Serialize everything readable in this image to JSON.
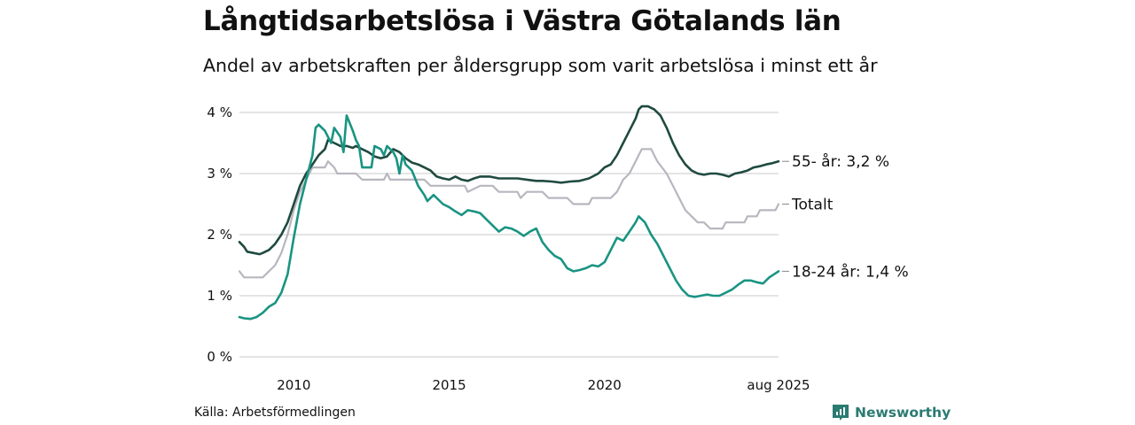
{
  "header": {
    "title": "Långtidsarbetslösa i Västra Götalands län",
    "subtitle": "Andel av arbetskraften per åldersgrupp som varit arbetslösa i minst ett år"
  },
  "footer": {
    "source": "Källa: Arbetsförmedlingen",
    "brand": "Newsworthy"
  },
  "colors": {
    "s55": "#1f4a40",
    "total": "#b8b6bf",
    "s1824": "#1a9482",
    "grid": "#dcdcdc",
    "brand": "#2a7b72"
  },
  "chart_data": {
    "type": "line",
    "ylim": [
      0,
      4
    ],
    "yticks": [
      0,
      1,
      2,
      3,
      4
    ],
    "ytick_labels": [
      "0 %",
      "1 %",
      "2 %",
      "3 %",
      "4 %"
    ],
    "xlim": [
      2008.25,
      2025.6
    ],
    "xticks": [
      2010,
      2015,
      2020,
      2025.6
    ],
    "xtick_labels": [
      "2010",
      "2015",
      "2020",
      "aug 2025"
    ],
    "grid": true,
    "series": [
      {
        "name": "Totalt",
        "end_label": "Totalt",
        "color_key": "total",
        "points": [
          [
            2008.25,
            1.4
          ],
          [
            2008.4,
            1.3
          ],
          [
            2009.0,
            1.3
          ],
          [
            2009.2,
            1.4
          ],
          [
            2009.4,
            1.5
          ],
          [
            2009.6,
            1.7
          ],
          [
            2009.8,
            2.0
          ],
          [
            2010.0,
            2.4
          ],
          [
            2010.2,
            2.7
          ],
          [
            2010.4,
            2.9
          ],
          [
            2010.6,
            3.1
          ],
          [
            2010.8,
            3.1
          ],
          [
            2011.0,
            3.1
          ],
          [
            2011.1,
            3.2
          ],
          [
            2011.3,
            3.1
          ],
          [
            2011.4,
            3.0
          ],
          [
            2012.0,
            3.0
          ],
          [
            2012.2,
            2.9
          ],
          [
            2012.9,
            2.9
          ],
          [
            2013.0,
            3.0
          ],
          [
            2013.1,
            2.9
          ],
          [
            2014.2,
            2.9
          ],
          [
            2014.4,
            2.8
          ],
          [
            2015.5,
            2.8
          ],
          [
            2015.6,
            2.7
          ],
          [
            2016.0,
            2.8
          ],
          [
            2016.4,
            2.8
          ],
          [
            2016.6,
            2.7
          ],
          [
            2017.2,
            2.7
          ],
          [
            2017.3,
            2.6
          ],
          [
            2017.5,
            2.7
          ],
          [
            2018.0,
            2.7
          ],
          [
            2018.2,
            2.6
          ],
          [
            2018.8,
            2.6
          ],
          [
            2019.0,
            2.5
          ],
          [
            2019.5,
            2.5
          ],
          [
            2019.6,
            2.6
          ],
          [
            2020.2,
            2.6
          ],
          [
            2020.4,
            2.7
          ],
          [
            2020.6,
            2.9
          ],
          [
            2020.8,
            3.0
          ],
          [
            2021.0,
            3.2
          ],
          [
            2021.2,
            3.4
          ],
          [
            2021.5,
            3.4
          ],
          [
            2021.7,
            3.2
          ],
          [
            2022.0,
            3.0
          ],
          [
            2022.2,
            2.8
          ],
          [
            2022.4,
            2.6
          ],
          [
            2022.6,
            2.4
          ],
          [
            2022.8,
            2.3
          ],
          [
            2023.0,
            2.2
          ],
          [
            2023.2,
            2.2
          ],
          [
            2023.4,
            2.1
          ],
          [
            2023.8,
            2.1
          ],
          [
            2023.9,
            2.2
          ],
          [
            2024.5,
            2.2
          ],
          [
            2024.6,
            2.3
          ],
          [
            2024.9,
            2.3
          ],
          [
            2025.0,
            2.4
          ],
          [
            2025.5,
            2.4
          ],
          [
            2025.6,
            2.5
          ]
        ]
      },
      {
        "name": "55- år",
        "end_label": "55- år: 3,2 %",
        "color_key": "s55",
        "points": [
          [
            2008.25,
            1.88
          ],
          [
            2008.4,
            1.8
          ],
          [
            2008.5,
            1.72
          ],
          [
            2008.7,
            1.7
          ],
          [
            2008.9,
            1.68
          ],
          [
            2009.0,
            1.7
          ],
          [
            2009.2,
            1.75
          ],
          [
            2009.4,
            1.85
          ],
          [
            2009.6,
            2.0
          ],
          [
            2009.8,
            2.2
          ],
          [
            2010.0,
            2.5
          ],
          [
            2010.2,
            2.8
          ],
          [
            2010.4,
            3.0
          ],
          [
            2010.6,
            3.15
          ],
          [
            2010.8,
            3.3
          ],
          [
            2011.0,
            3.4
          ],
          [
            2011.1,
            3.55
          ],
          [
            2011.3,
            3.5
          ],
          [
            2011.5,
            3.45
          ],
          [
            2011.7,
            3.45
          ],
          [
            2011.9,
            3.42
          ],
          [
            2012.0,
            3.45
          ],
          [
            2012.2,
            3.4
          ],
          [
            2012.4,
            3.35
          ],
          [
            2012.6,
            3.28
          ],
          [
            2012.8,
            3.25
          ],
          [
            2013.0,
            3.28
          ],
          [
            2013.2,
            3.4
          ],
          [
            2013.4,
            3.35
          ],
          [
            2013.6,
            3.25
          ],
          [
            2013.8,
            3.18
          ],
          [
            2014.0,
            3.15
          ],
          [
            2014.2,
            3.1
          ],
          [
            2014.4,
            3.05
          ],
          [
            2014.6,
            2.95
          ],
          [
            2014.8,
            2.92
          ],
          [
            2015.0,
            2.9
          ],
          [
            2015.2,
            2.95
          ],
          [
            2015.4,
            2.9
          ],
          [
            2015.6,
            2.88
          ],
          [
            2015.8,
            2.92
          ],
          [
            2016.0,
            2.95
          ],
          [
            2016.3,
            2.95
          ],
          [
            2016.6,
            2.92
          ],
          [
            2016.9,
            2.92
          ],
          [
            2017.2,
            2.92
          ],
          [
            2017.5,
            2.9
          ],
          [
            2017.8,
            2.88
          ],
          [
            2018.0,
            2.88
          ],
          [
            2018.3,
            2.87
          ],
          [
            2018.6,
            2.85
          ],
          [
            2018.9,
            2.87
          ],
          [
            2019.2,
            2.88
          ],
          [
            2019.5,
            2.92
          ],
          [
            2019.8,
            3.0
          ],
          [
            2020.0,
            3.1
          ],
          [
            2020.2,
            3.15
          ],
          [
            2020.4,
            3.3
          ],
          [
            2020.6,
            3.5
          ],
          [
            2020.8,
            3.7
          ],
          [
            2021.0,
            3.9
          ],
          [
            2021.1,
            4.05
          ],
          [
            2021.2,
            4.1
          ],
          [
            2021.4,
            4.1
          ],
          [
            2021.6,
            4.05
          ],
          [
            2021.8,
            3.95
          ],
          [
            2022.0,
            3.75
          ],
          [
            2022.2,
            3.5
          ],
          [
            2022.4,
            3.3
          ],
          [
            2022.6,
            3.15
          ],
          [
            2022.8,
            3.05
          ],
          [
            2023.0,
            3.0
          ],
          [
            2023.2,
            2.98
          ],
          [
            2023.4,
            3.0
          ],
          [
            2023.6,
            3.0
          ],
          [
            2023.8,
            2.98
          ],
          [
            2024.0,
            2.95
          ],
          [
            2024.2,
            3.0
          ],
          [
            2024.4,
            3.02
          ],
          [
            2024.6,
            3.05
          ],
          [
            2024.8,
            3.1
          ],
          [
            2025.0,
            3.12
          ],
          [
            2025.2,
            3.15
          ],
          [
            2025.4,
            3.17
          ],
          [
            2025.6,
            3.2
          ]
        ]
      },
      {
        "name": "18-24 år",
        "end_label": "18-24 år: 1,4 %",
        "color_key": "s1824",
        "points": [
          [
            2008.25,
            0.65
          ],
          [
            2008.4,
            0.63
          ],
          [
            2008.6,
            0.62
          ],
          [
            2008.8,
            0.65
          ],
          [
            2009.0,
            0.72
          ],
          [
            2009.2,
            0.82
          ],
          [
            2009.4,
            0.88
          ],
          [
            2009.6,
            1.05
          ],
          [
            2009.8,
            1.35
          ],
          [
            2010.0,
            1.95
          ],
          [
            2010.2,
            2.5
          ],
          [
            2010.4,
            2.9
          ],
          [
            2010.6,
            3.3
          ],
          [
            2010.7,
            3.75
          ],
          [
            2010.8,
            3.8
          ],
          [
            2011.0,
            3.7
          ],
          [
            2011.2,
            3.5
          ],
          [
            2011.3,
            3.75
          ],
          [
            2011.5,
            3.6
          ],
          [
            2011.6,
            3.35
          ],
          [
            2011.7,
            3.95
          ],
          [
            2011.9,
            3.7
          ],
          [
            2012.0,
            3.55
          ],
          [
            2012.1,
            3.45
          ],
          [
            2012.2,
            3.1
          ],
          [
            2012.5,
            3.1
          ],
          [
            2012.6,
            3.45
          ],
          [
            2012.8,
            3.4
          ],
          [
            2012.9,
            3.3
          ],
          [
            2013.0,
            3.45
          ],
          [
            2013.2,
            3.35
          ],
          [
            2013.3,
            3.25
          ],
          [
            2013.4,
            3.0
          ],
          [
            2013.5,
            3.3
          ],
          [
            2013.6,
            3.15
          ],
          [
            2013.8,
            3.05
          ],
          [
            2014.0,
            2.8
          ],
          [
            2014.2,
            2.65
          ],
          [
            2014.3,
            2.55
          ],
          [
            2014.5,
            2.65
          ],
          [
            2014.8,
            2.5
          ],
          [
            2015.0,
            2.45
          ],
          [
            2015.2,
            2.38
          ],
          [
            2015.4,
            2.32
          ],
          [
            2015.6,
            2.4
          ],
          [
            2015.8,
            2.38
          ],
          [
            2016.0,
            2.35
          ],
          [
            2016.2,
            2.25
          ],
          [
            2016.4,
            2.15
          ],
          [
            2016.6,
            2.05
          ],
          [
            2016.8,
            2.12
          ],
          [
            2017.0,
            2.1
          ],
          [
            2017.2,
            2.05
          ],
          [
            2017.4,
            1.98
          ],
          [
            2017.6,
            2.05
          ],
          [
            2017.8,
            2.1
          ],
          [
            2018.0,
            1.88
          ],
          [
            2018.2,
            1.75
          ],
          [
            2018.4,
            1.65
          ],
          [
            2018.6,
            1.6
          ],
          [
            2018.8,
            1.45
          ],
          [
            2019.0,
            1.4
          ],
          [
            2019.2,
            1.42
          ],
          [
            2019.4,
            1.45
          ],
          [
            2019.6,
            1.5
          ],
          [
            2019.8,
            1.48
          ],
          [
            2020.0,
            1.55
          ],
          [
            2020.2,
            1.75
          ],
          [
            2020.4,
            1.95
          ],
          [
            2020.6,
            1.9
          ],
          [
            2020.8,
            2.05
          ],
          [
            2021.0,
            2.2
          ],
          [
            2021.1,
            2.3
          ],
          [
            2021.3,
            2.2
          ],
          [
            2021.5,
            2.0
          ],
          [
            2021.7,
            1.85
          ],
          [
            2021.9,
            1.65
          ],
          [
            2022.1,
            1.45
          ],
          [
            2022.3,
            1.25
          ],
          [
            2022.5,
            1.1
          ],
          [
            2022.7,
            1.0
          ],
          [
            2022.9,
            0.98
          ],
          [
            2023.1,
            1.0
          ],
          [
            2023.3,
            1.02
          ],
          [
            2023.5,
            1.0
          ],
          [
            2023.7,
            1.0
          ],
          [
            2023.9,
            1.05
          ],
          [
            2024.1,
            1.1
          ],
          [
            2024.3,
            1.18
          ],
          [
            2024.5,
            1.25
          ],
          [
            2024.7,
            1.25
          ],
          [
            2024.9,
            1.22
          ],
          [
            2025.1,
            1.2
          ],
          [
            2025.3,
            1.3
          ],
          [
            2025.6,
            1.4
          ]
        ]
      }
    ]
  }
}
